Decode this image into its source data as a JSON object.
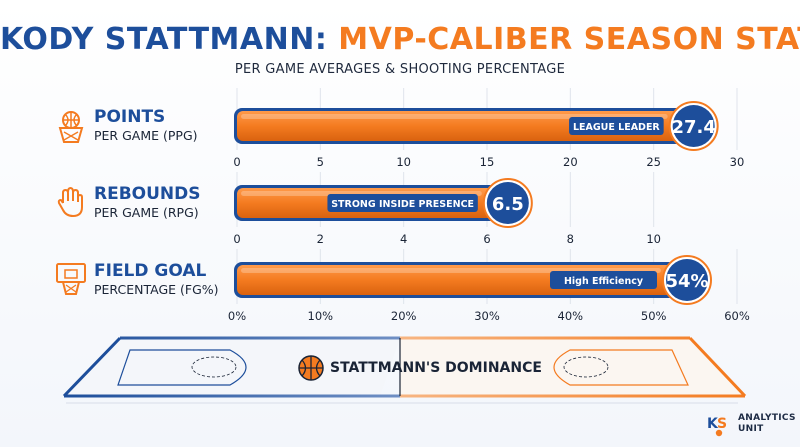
{
  "title": {
    "part1": "KODY STATTMANN:",
    "part2": "MVP-CALIBER SEASON STATS"
  },
  "subtitle": "PER GAME AVERAGES & SHOOTING PERCENTAGE",
  "colors": {
    "blue": "#1d4e9b",
    "orange": "#f47b20",
    "dark": "#1a2436"
  },
  "court_label": "STATTMANN'S DOMINANCE",
  "footer": {
    "line1": "ANALYTICS",
    "line2": "UNIT",
    "logo": "KS"
  },
  "chart_data": [
    {
      "type": "bar",
      "orientation": "horizontal",
      "title": "POINTS",
      "subtitle": "PER GAME (PPG)",
      "icon": "basketball-hoop-icon",
      "value": 27.4,
      "value_label": "27.4",
      "annotation": "LEAGUE LEADER",
      "xlim": [
        0,
        30
      ],
      "ticks": [
        "0",
        "5",
        "10",
        "15",
        "20",
        "25",
        "30"
      ],
      "grid": true
    },
    {
      "type": "bar",
      "orientation": "horizontal",
      "title": "REBOUNDS",
      "subtitle": "PER GAME (RPG)",
      "icon": "hand-icon",
      "value": 6.5,
      "value_label": "6.5",
      "annotation": "STRONG INSIDE PRESENCE",
      "xlim": [
        0,
        12
      ],
      "ticks": [
        "0",
        "2",
        "4",
        "6",
        "8",
        "10"
      ],
      "grid": true
    },
    {
      "type": "bar",
      "orientation": "horizontal",
      "title": "FIELD GOAL",
      "subtitle": "PERCENTAGE (FG%)",
      "icon": "backboard-icon",
      "value": 54,
      "value_label": "54%",
      "annotation": "High Efficiency",
      "xlim": [
        0,
        60
      ],
      "ticks": [
        "0%",
        "10%",
        "20%",
        "30%",
        "40%",
        "50%",
        "60%"
      ],
      "grid": true
    }
  ]
}
